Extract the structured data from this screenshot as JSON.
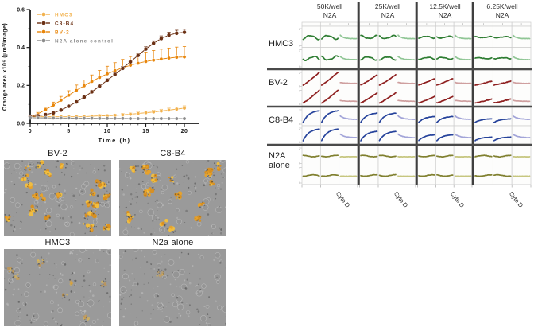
{
  "figure_background": "#ffffff",
  "chart_data": {
    "type": "line",
    "title": "",
    "xlabel": "Time (h)",
    "ylabel": "Orange area x10⁶ (µm²/image)",
    "xlim": [
      0,
      21
    ],
    "ylim": [
      0,
      0.6
    ],
    "xticks": [
      0,
      5,
      10,
      15,
      20
    ],
    "ytick_labels": [
      "0.0",
      "0.2",
      "0.4",
      "0.6"
    ],
    "yticks": [
      0,
      0.2,
      0.4,
      0.6
    ],
    "grid": false,
    "legend_position": "top-left",
    "x": [
      0,
      1,
      2,
      3,
      4,
      5,
      6,
      7,
      8,
      9,
      10,
      11,
      12,
      13,
      14,
      15,
      16,
      17,
      18,
      19,
      20
    ],
    "series": [
      {
        "name": "HMC3",
        "color": "#F2B24E",
        "values": [
          0.035,
          0.035,
          0.035,
          0.035,
          0.035,
          0.035,
          0.035,
          0.035,
          0.038,
          0.04,
          0.04,
          0.042,
          0.045,
          0.048,
          0.052,
          0.056,
          0.06,
          0.065,
          0.07,
          0.075,
          0.08
        ],
        "errors": [
          0.004,
          0.004,
          0.004,
          0.004,
          0.004,
          0.005,
          0.005,
          0.005,
          0.005,
          0.006,
          0.006,
          0.006,
          0.007,
          0.007,
          0.008,
          0.008,
          0.009,
          0.009,
          0.01,
          0.01,
          0.012
        ]
      },
      {
        "name": "C8-B4",
        "color": "#6B3014",
        "values": [
          0.035,
          0.04,
          0.046,
          0.055,
          0.07,
          0.09,
          0.113,
          0.138,
          0.166,
          0.196,
          0.227,
          0.258,
          0.29,
          0.324,
          0.358,
          0.392,
          0.422,
          0.447,
          0.465,
          0.475,
          0.48
        ],
        "errors": [
          0.004,
          0.004,
          0.005,
          0.005,
          0.006,
          0.006,
          0.007,
          0.007,
          0.008,
          0.008,
          0.009,
          0.009,
          0.01,
          0.01,
          0.011,
          0.012,
          0.013,
          0.014,
          0.015,
          0.016,
          0.016
        ]
      },
      {
        "name": "BV-2",
        "color": "#E8860B",
        "values": [
          0.035,
          0.05,
          0.072,
          0.096,
          0.122,
          0.148,
          0.174,
          0.198,
          0.221,
          0.242,
          0.261,
          0.278,
          0.293,
          0.306,
          0.317,
          0.326,
          0.333,
          0.339,
          0.344,
          0.348,
          0.35
        ],
        "errors": [
          0.005,
          0.008,
          0.012,
          0.016,
          0.02,
          0.024,
          0.028,
          0.031,
          0.034,
          0.037,
          0.04,
          0.042,
          0.044,
          0.046,
          0.048,
          0.05,
          0.051,
          0.052,
          0.053,
          0.054,
          0.055
        ]
      },
      {
        "name": "N2A alone control",
        "color": "#8C8C8C",
        "values": [
          0.03,
          0.029,
          0.029,
          0.028,
          0.028,
          0.028,
          0.027,
          0.027,
          0.027,
          0.026,
          0.026,
          0.026,
          0.026,
          0.025,
          0.025,
          0.025,
          0.025,
          0.025,
          0.025,
          0.025,
          0.025
        ],
        "errors": [
          0.003,
          0.003,
          0.003,
          0.003,
          0.003,
          0.003,
          0.003,
          0.003,
          0.003,
          0.003,
          0.003,
          0.003,
          0.003,
          0.003,
          0.003,
          0.003,
          0.003,
          0.003,
          0.003,
          0.003,
          0.003
        ]
      }
    ]
  },
  "micrographs": {
    "background_color": "#9a9a9a",
    "orange_colors": [
      "#f2bf3e",
      "#e8a22a",
      "#d98f1f"
    ],
    "panels": [
      {
        "label": "BV-2",
        "orange_density": "high"
      },
      {
        "label": "C8-B4",
        "orange_density": "medium-high"
      },
      {
        "label": "HMC3",
        "orange_density": "low"
      },
      {
        "label": "N2a alone",
        "orange_density": "none"
      }
    ]
  },
  "trellis": {
    "cell_border_color": "#cccccc",
    "separator_color": "#3f3f3f",
    "cyto_label": "Cyto D",
    "replicate_rows_per_line": 2,
    "columns_per_density_group": 3,
    "col_groups": [
      {
        "header_line1": "50K/well",
        "header_line2": "N2A",
        "amplitude": 1.0
      },
      {
        "header_line1": "25K/well",
        "header_line2": "N2A",
        "amplitude": 0.8
      },
      {
        "header_line1": "12.5K/well",
        "header_line2": "N2A",
        "amplitude": 0.5
      },
      {
        "header_line1": "6.25K/well",
        "header_line2": "N2A",
        "amplitude": 0.3
      }
    ],
    "row_groups": [
      {
        "label": "HMC3",
        "label_line2": "",
        "color": "#2e7d32",
        "cyto_color": "#90c695",
        "trend": "flat-wavy"
      },
      {
        "label": "BV-2",
        "label_line2": "",
        "color": "#8e1f1f",
        "cyto_color": "#cf9f9f",
        "trend": "rising-linear"
      },
      {
        "label": "C8-B4",
        "label_line2": "",
        "color": "#26439b",
        "cyto_color": "#a2a4d8",
        "trend": "rising-saturating"
      },
      {
        "label": "N2A",
        "label_line2": "alone",
        "color": "#80802f",
        "cyto_color": "#c6c67f",
        "trend": "flat"
      }
    ]
  }
}
